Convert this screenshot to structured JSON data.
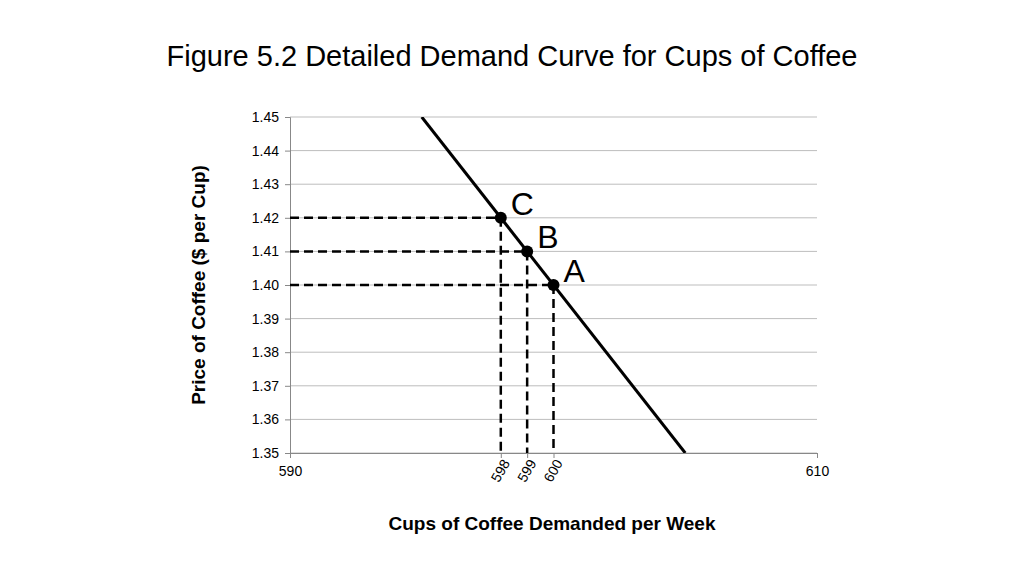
{
  "chart_data": {
    "type": "line",
    "title": "Figure 5.2 Detailed Demand Curve for Cups of Coffee",
    "x_label": "Cups of Coffee Demanded per Week",
    "y_label": "Price of Coffee ($ per Cup)",
    "x": [
      595,
      605
    ],
    "values": [
      1.45,
      1.35
    ],
    "color": "#000000",
    "points": [
      {
        "label": "A",
        "x": 600,
        "y": 1.4
      },
      {
        "label": "B",
        "x": 599,
        "y": 1.41
      },
      {
        "label": "C",
        "x": 598,
        "y": 1.42
      }
    ],
    "xlim": [
      590,
      610
    ],
    "xticks": [
      590,
      598,
      599,
      600,
      610
    ],
    "ylim": [
      1.35,
      1.45
    ],
    "yticks": [
      1.35,
      1.36,
      1.37,
      1.38,
      1.39,
      {
        "value": 1.4,
        "label": "1.40"
      },
      1.41,
      1.42,
      1.43,
      1.44,
      1.45
    ],
    "grid": true,
    "marker": "circle"
  }
}
